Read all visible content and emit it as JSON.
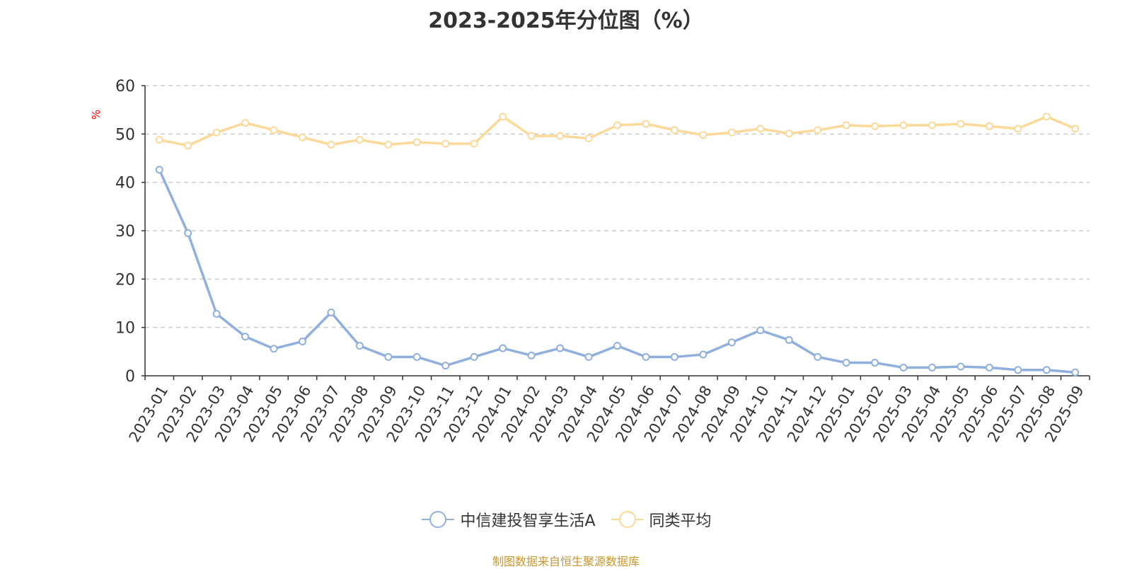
{
  "chart_data": {
    "type": "line",
    "title": "2023-2025年分位图（%）",
    "ylabel": "%",
    "ylim": [
      0,
      60
    ],
    "yticks": [
      0,
      10,
      20,
      30,
      40,
      50,
      60
    ],
    "grid": true,
    "legend_position": "bottom",
    "categories": [
      "2023-01",
      "2023-02",
      "2023-03",
      "2023-04",
      "2023-05",
      "2023-06",
      "2023-07",
      "2023-08",
      "2023-09",
      "2023-10",
      "2023-11",
      "2023-12",
      "2024-01",
      "2024-02",
      "2024-03",
      "2024-04",
      "2024-05",
      "2024-06",
      "2024-07",
      "2024-08",
      "2024-09",
      "2024-10",
      "2024-11",
      "2024-12",
      "2025-01",
      "2025-02",
      "2025-03",
      "2025-04",
      "2025-05",
      "2025-06",
      "2025-07",
      "2025-08",
      "2025-09"
    ],
    "series": [
      {
        "name": "中信建投智享生活A",
        "color": "#8fb0dc",
        "values": [
          42.6,
          29.5,
          12.8,
          8.1,
          5.6,
          7.1,
          13.1,
          6.2,
          3.9,
          3.9,
          2.1,
          3.9,
          5.7,
          4.2,
          5.7,
          3.9,
          6.2,
          3.9,
          3.9,
          4.4,
          6.9,
          9.4,
          7.4,
          3.9,
          2.7,
          2.7,
          1.7,
          1.7,
          1.9,
          1.7,
          1.2,
          1.2,
          0.7
        ]
      },
      {
        "name": "同类平均",
        "color": "#fbd999",
        "values": [
          48.8,
          47.6,
          50.3,
          52.3,
          50.8,
          49.3,
          47.8,
          48.8,
          47.8,
          48.3,
          48.0,
          48.0,
          53.6,
          49.6,
          49.6,
          49.1,
          51.8,
          52.1,
          50.8,
          49.8,
          50.3,
          51.1,
          50.1,
          50.8,
          51.8,
          51.6,
          51.8,
          51.8,
          52.1,
          51.6,
          51.1,
          53.6,
          51.1
        ]
      }
    ]
  },
  "footer": {
    "source_text": "制图数据来自恒生聚源数据库",
    "source_color": "#c8962e"
  },
  "style": {
    "axis_color": "#333333",
    "grid_color": "#cccccc",
    "ylabel_color": "#ff0000"
  }
}
